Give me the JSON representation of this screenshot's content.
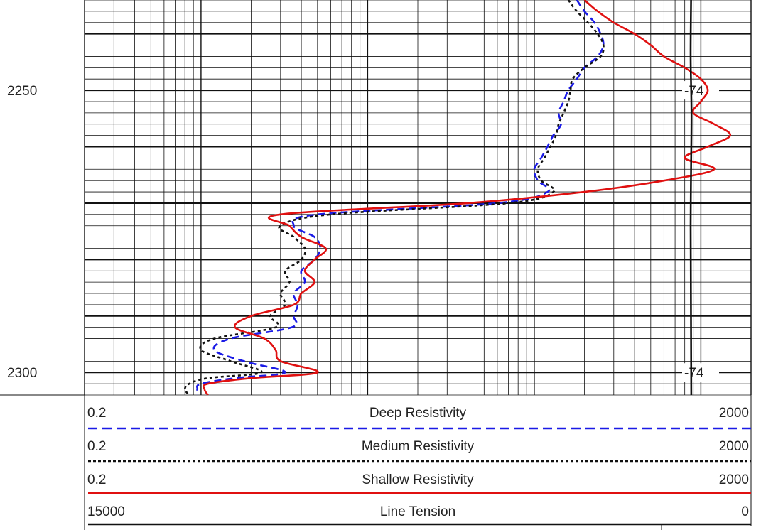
{
  "chart_data": {
    "type": "line",
    "subtype": "well-log",
    "depth_axis": {
      "range": [
        2234,
        2304
      ],
      "tick_labels": [
        "2250",
        "2300"
      ],
      "major_step": 10,
      "minor_step": 2
    },
    "resistivity_scale": "log",
    "grid": "on",
    "tension_track_marks": [
      "-74",
      "-74"
    ],
    "tension_mark_depths": [
      2250,
      2300
    ],
    "legend": [
      {
        "key": "deep",
        "name": "Deep Resistivity",
        "min": "0.2",
        "max": "2000",
        "color": "#1a1ae6",
        "style": "dashed"
      },
      {
        "key": "medium",
        "name": "Medium Resistivity",
        "min": "0.2",
        "max": "2000",
        "color": "#111111",
        "style": "dotted"
      },
      {
        "key": "shallow",
        "name": "Shallow Resistivity",
        "min": "0.2",
        "max": "2000",
        "color": "#e01010",
        "style": "solid"
      },
      {
        "key": "tension",
        "name": "Line Tension",
        "min": "15000",
        "max": "0",
        "color": "#111111",
        "style": "solid"
      }
    ],
    "series": [
      {
        "name": "Deep Resistivity",
        "depth": [
          2234,
          2236,
          2238,
          2240,
          2242,
          2244,
          2246,
          2248,
          2250,
          2252,
          2254,
          2256,
          2258,
          2260,
          2262,
          2264,
          2266,
          2268,
          2270,
          2272,
          2274,
          2276,
          2278,
          2280,
          2282,
          2284,
          2286,
          2288,
          2290,
          2292,
          2294,
          2296,
          2298,
          2300,
          2301,
          2302,
          2303,
          2304
        ],
        "values": [
          180,
          200,
          230,
          250,
          260,
          240,
          200,
          180,
          160,
          150,
          140,
          145,
          130,
          120,
          110,
          100,
          105,
          120,
          60,
          5.0,
          3.6,
          4.8,
          5.2,
          4.8,
          4.0,
          4.2,
          3.6,
          3.8,
          3.6,
          3.5,
          1.5,
          1.2,
          1.8,
          3.2,
          1.6,
          1.0,
          0.95,
          0.95
        ]
      },
      {
        "name": "Medium Resistivity",
        "depth": [
          2234,
          2236,
          2238,
          2240,
          2242,
          2244,
          2246,
          2248,
          2250,
          2252,
          2254,
          2256,
          2258,
          2260,
          2262,
          2264,
          2266,
          2268,
          2270,
          2272,
          2274,
          2276,
          2278,
          2280,
          2282,
          2284,
          2286,
          2288,
          2290,
          2292,
          2294,
          2296,
          2298,
          2300,
          2301,
          2302,
          2303,
          2304
        ],
        "values": [
          160,
          180,
          210,
          240,
          260,
          250,
          200,
          170,
          165,
          160,
          150,
          140,
          135,
          125,
          115,
          105,
          110,
          130,
          70,
          6.0,
          3.0,
          3.6,
          4.2,
          4.0,
          3.2,
          3.4,
          3.0,
          3.2,
          2.6,
          2.8,
          1.2,
          1.0,
          1.5,
          2.3,
          1.1,
          0.85,
          0.8,
          0.85
        ]
      },
      {
        "name": "Shallow Resistivity",
        "depth": [
          2234,
          2236,
          2238,
          2240,
          2242,
          2244,
          2246,
          2248,
          2250,
          2252,
          2254,
          2256,
          2258,
          2260,
          2262,
          2264,
          2266,
          2268,
          2270,
          2272,
          2274,
          2276,
          2278,
          2280,
          2282,
          2284,
          2286,
          2288,
          2290,
          2292,
          2294,
          2296,
          2298,
          2300,
          2301,
          2302,
          2303,
          2304
        ],
        "values": [
          200,
          240,
          300,
          400,
          500,
          600,
          800,
          1000,
          1100,
          1000,
          900,
          1200,
          1500,
          1100,
          800,
          1200,
          600,
          200,
          40,
          3.0,
          3.4,
          4.0,
          5.6,
          4.8,
          4.2,
          4.8,
          4.0,
          3.6,
          2.0,
          1.6,
          2.4,
          2.8,
          3.0,
          5.0,
          2.0,
          1.1,
          1.05,
          1.1
        ]
      },
      {
        "name": "Line Tension",
        "depth": [
          2234,
          2244,
          2254,
          2264,
          2274,
          2284,
          2294,
          2304
        ],
        "values": [
          1350,
          1360,
          1340,
          1350,
          1360,
          1355,
          1350,
          1345
        ]
      }
    ]
  }
}
